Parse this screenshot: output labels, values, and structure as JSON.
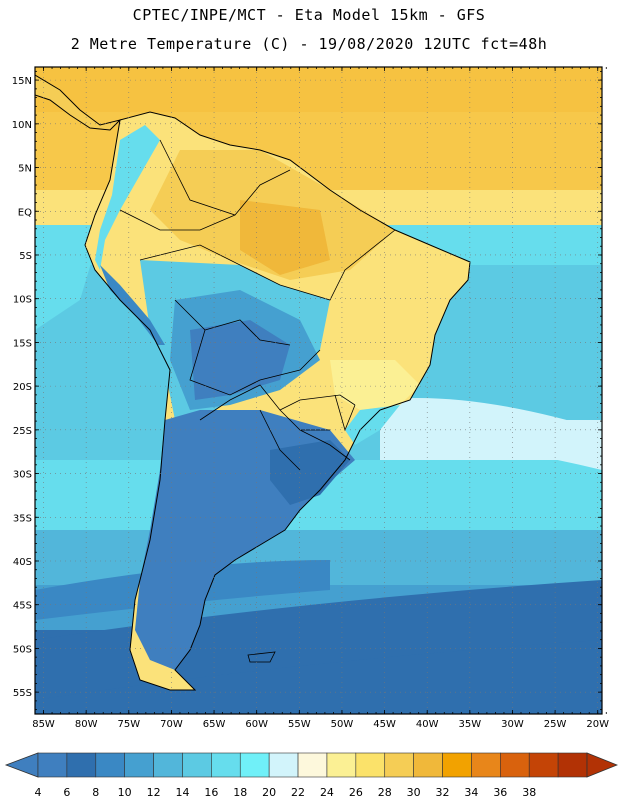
{
  "header": {
    "line1": "CPTEC/INPE/MCT -  Eta Model 15km - GFS",
    "line2": "2 Metre Temperature (C) - 19/08/2020 12UTC fct=48h"
  },
  "map": {
    "lat_labels": [
      "15N",
      "10N",
      "5N",
      "EQ",
      "5S",
      "10S",
      "15S",
      "20S",
      "25S",
      "30S",
      "35S",
      "40S",
      "45S",
      "50S",
      "55S"
    ],
    "lon_labels": [
      "85W",
      "80W",
      "75W",
      "70W",
      "65W",
      "60W",
      "55W",
      "50W",
      "45W",
      "40W",
      "35W",
      "30W",
      "25W",
      "20W"
    ],
    "extent": {
      "lon_min": -86,
      "lon_max": -19.5,
      "lat_min": -57.5,
      "lat_max": 16.5
    }
  },
  "colorbar": {
    "ticks": [
      "4",
      "6",
      "8",
      "10",
      "12",
      "14",
      "16",
      "18",
      "20",
      "22",
      "24",
      "26",
      "28",
      "30",
      "32",
      "34",
      "36",
      "38"
    ],
    "colors": [
      "#3f7fbf",
      "#2f6fae",
      "#3a88c4",
      "#45a0d0",
      "#52b6da",
      "#5ccae3",
      "#66dded",
      "#70f0f8",
      "#d2f4fb",
      "#fdf8dc",
      "#fbf094",
      "#fbe26a",
      "#f5cd55",
      "#f0b83a",
      "#f2a200",
      "#e8861a",
      "#d9620d",
      "#c44406",
      "#b23205"
    ]
  }
}
